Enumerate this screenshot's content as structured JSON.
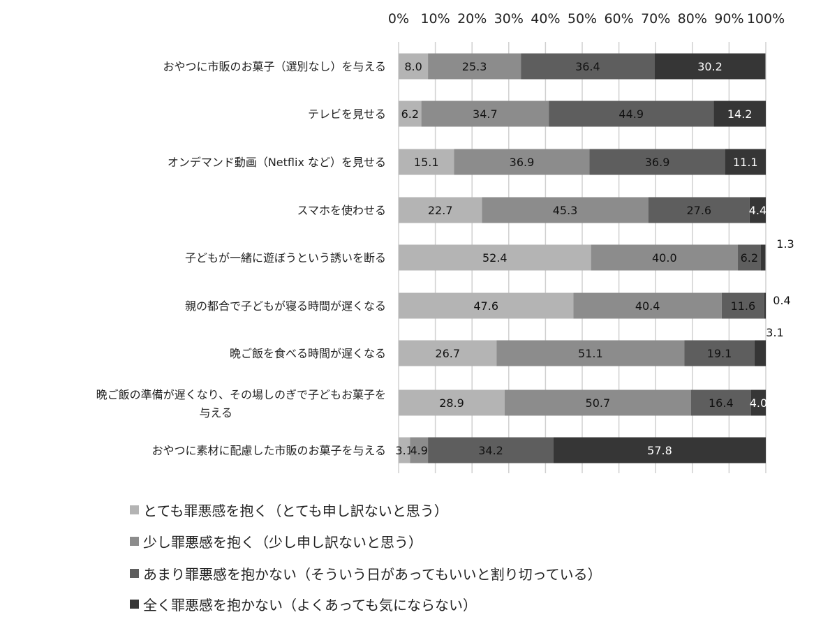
{
  "chart_data": {
    "type": "bar",
    "orientation": "horizontal-stacked-100",
    "xlim": [
      0,
      100
    ],
    "x_ticks": [
      "0%",
      "10%",
      "20%",
      "30%",
      "40%",
      "50%",
      "60%",
      "70%",
      "80%",
      "90%",
      "100%"
    ],
    "grid": true,
    "legend_position": "bottom",
    "categories": [
      "おやつに市販のお菓子（選別なし）を与える",
      "テレビを見せる",
      "オンデマンド動画（Netflix など）を見せる",
      "スマホを使わせる",
      "子どもが一緒に遊ぼうという誘いを断る",
      "親の都合で子どもが寝る時間が遅くなる",
      "晩ご飯を食べる時間が遅くなる",
      "晩ご飯の準備が遅くなり、その場しのぎで子どもお菓子を|与える",
      "おやつに素材に配慮した市販のお菓子を与える"
    ],
    "series": [
      {
        "name": "とても罪悪感を抱く（とても申し訳ないと思う）",
        "color": "#b4b4b4",
        "values": [
          8.0,
          6.2,
          15.1,
          22.7,
          52.4,
          47.6,
          26.7,
          28.9,
          3.1
        ]
      },
      {
        "name": "少し罪悪感を抱く（少し申し訳ないと思う）",
        "color": "#8c8c8c",
        "values": [
          25.3,
          34.7,
          36.9,
          45.3,
          40.0,
          40.4,
          51.1,
          50.7,
          4.9
        ]
      },
      {
        "name": "あまり罪悪感を抱かない（そういう日があってもいいと割り切っている）",
        "color": "#5e5e5e",
        "values": [
          36.4,
          44.9,
          36.9,
          27.6,
          6.2,
          11.6,
          19.1,
          16.4,
          34.2
        ]
      },
      {
        "name": "全く罪悪感を抱かない（よくあっても気にならない）",
        "color": "#363636",
        "values": [
          30.2,
          14.2,
          11.1,
          4.4,
          1.3,
          0.4,
          3.1,
          4.0,
          57.8
        ]
      }
    ]
  }
}
